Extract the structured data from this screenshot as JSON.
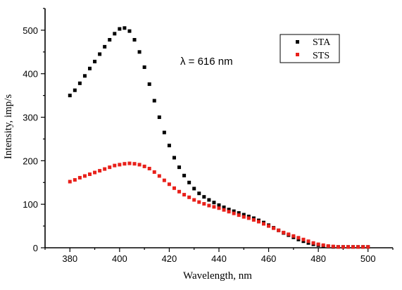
{
  "chart_data": {
    "type": "scatter",
    "xlabel": "Wavelength, nm",
    "ylabel": "Intensity, imp/s",
    "annotation": "λ = 616 nm",
    "xlim": [
      370,
      510
    ],
    "ylim": [
      0,
      550
    ],
    "xticks": [
      380,
      400,
      420,
      440,
      460,
      480,
      500
    ],
    "yticks": [
      0,
      100,
      200,
      300,
      400,
      500
    ],
    "legend_position": "top-right",
    "grid": false,
    "series": [
      {
        "name": "STA",
        "color": "#000000",
        "x": [
          380,
          382,
          384,
          386,
          388,
          390,
          392,
          394,
          396,
          398,
          400,
          402,
          404,
          406,
          408,
          410,
          412,
          414,
          416,
          418,
          420,
          422,
          424,
          426,
          428,
          430,
          432,
          434,
          436,
          438,
          440,
          442,
          444,
          446,
          448,
          450,
          452,
          454,
          456,
          458,
          460,
          462,
          464,
          466,
          468,
          470,
          472,
          474,
          476,
          478,
          480,
          482,
          484,
          486,
          488,
          490,
          492,
          494,
          496,
          498,
          500
        ],
        "y": [
          350,
          362,
          378,
          395,
          412,
          428,
          445,
          462,
          478,
          492,
          503,
          505,
          498,
          478,
          450,
          415,
          376,
          338,
          300,
          265,
          235,
          207,
          185,
          166,
          150,
          136,
          125,
          117,
          110,
          104,
          98,
          93,
          88,
          84,
          80,
          76,
          72,
          68,
          63,
          58,
          52,
          46,
          40,
          34,
          29,
          24,
          19,
          15,
          11,
          8,
          6,
          4,
          3,
          2,
          2,
          2,
          2,
          2,
          2,
          2,
          2
        ]
      },
      {
        "name": "STS",
        "color": "#e8201a",
        "x": [
          380,
          382,
          384,
          386,
          388,
          390,
          392,
          394,
          396,
          398,
          400,
          402,
          404,
          406,
          408,
          410,
          412,
          414,
          416,
          418,
          420,
          422,
          424,
          426,
          428,
          430,
          432,
          434,
          436,
          438,
          440,
          442,
          444,
          446,
          448,
          450,
          452,
          454,
          456,
          458,
          460,
          462,
          464,
          466,
          468,
          470,
          472,
          474,
          476,
          478,
          480,
          482,
          484,
          486,
          488,
          490,
          492,
          494,
          496,
          498,
          500
        ],
        "y": [
          152,
          156,
          161,
          165,
          169,
          173,
          177,
          181,
          185,
          189,
          191,
          193,
          194,
          193,
          191,
          187,
          182,
          174,
          165,
          155,
          146,
          137,
          129,
          122,
          116,
          110,
          105,
          101,
          97,
          94,
          91,
          87,
          83,
          79,
          75,
          71,
          68,
          64,
          60,
          55,
          50,
          45,
          40,
          35,
          31,
          27,
          23,
          19,
          15,
          11,
          8,
          6,
          4,
          3,
          2,
          2,
          2,
          2,
          2,
          2,
          2
        ]
      }
    ]
  }
}
